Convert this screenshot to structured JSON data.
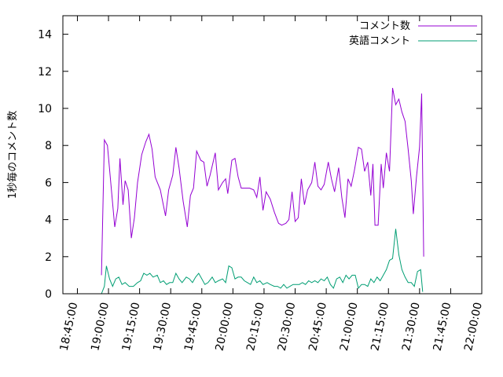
{
  "chart_data": {
    "type": "line",
    "title": "",
    "xlabel": "",
    "ylabel": "1秒毎のコメント数",
    "ylim": [
      0,
      15
    ],
    "yticks": [
      0,
      2,
      4,
      6,
      8,
      10,
      12,
      14
    ],
    "xlim": [
      "18:38:00",
      "22:00:00"
    ],
    "xticks": [
      "18:45:00",
      "19:00:00",
      "19:15:00",
      "19:30:00",
      "19:45:00",
      "20:00:00",
      "20:15:00",
      "20:30:00",
      "20:45:00",
      "21:00:00",
      "21:15:00",
      "21:30:00",
      "21:45:00",
      "22:00:00"
    ],
    "grid": false,
    "legend_position": "top-right",
    "series": [
      {
        "name": "コメント数",
        "color": "#9400d3",
        "points": [
          [
            "18:56:36",
            1.0
          ],
          [
            "18:58:00",
            8.3
          ],
          [
            "18:59:30",
            8.0
          ],
          [
            "19:01:00",
            6.1
          ],
          [
            "19:03:00",
            3.6
          ],
          [
            "19:04:30",
            4.6
          ],
          [
            "19:05:30",
            7.3
          ],
          [
            "19:07:00",
            4.8
          ],
          [
            "19:08:00",
            6.1
          ],
          [
            "19:09:30",
            5.6
          ],
          [
            "19:11:00",
            3.0
          ],
          [
            "19:12:30",
            4.1
          ],
          [
            "19:14:00",
            6.0
          ],
          [
            "19:16:00",
            7.5
          ],
          [
            "19:18:00",
            8.2
          ],
          [
            "19:19:30",
            8.6
          ],
          [
            "19:21:00",
            7.8
          ],
          [
            "19:22:30",
            6.3
          ],
          [
            "19:25:00",
            5.6
          ],
          [
            "19:27:30",
            4.2
          ],
          [
            "19:29:00",
            5.6
          ],
          [
            "19:31:00",
            6.4
          ],
          [
            "19:32:30",
            7.9
          ],
          [
            "19:34:00",
            6.8
          ],
          [
            "19:36:00",
            5.0
          ],
          [
            "19:38:00",
            3.6
          ],
          [
            "19:39:30",
            5.3
          ],
          [
            "19:41:00",
            5.7
          ],
          [
            "19:42:30",
            7.7
          ],
          [
            "19:44:30",
            7.2
          ],
          [
            "19:46:00",
            7.1
          ],
          [
            "19:47:30",
            5.8
          ],
          [
            "19:49:00",
            6.4
          ],
          [
            "19:51:30",
            7.6
          ],
          [
            "19:53:00",
            5.6
          ],
          [
            "19:55:00",
            6.0
          ],
          [
            "19:56:30",
            6.2
          ],
          [
            "19:57:30",
            5.4
          ],
          [
            "19:59:30",
            7.2
          ],
          [
            "20:01:00",
            7.3
          ],
          [
            "20:02:30",
            6.3
          ],
          [
            "20:04:00",
            5.7
          ],
          [
            "20:06:00",
            5.7
          ],
          [
            "20:08:00",
            5.7
          ],
          [
            "20:10:00",
            5.6
          ],
          [
            "20:11:30",
            5.2
          ],
          [
            "20:13:00",
            6.3
          ],
          [
            "20:14:30",
            4.5
          ],
          [
            "20:16:00",
            5.5
          ],
          [
            "20:18:00",
            5.1
          ],
          [
            "20:20:00",
            4.4
          ],
          [
            "20:22:00",
            3.8
          ],
          [
            "20:23:30",
            3.7
          ],
          [
            "20:25:30",
            3.8
          ],
          [
            "20:27:00",
            4.0
          ],
          [
            "20:28:30",
            5.5
          ],
          [
            "20:30:00",
            3.9
          ],
          [
            "20:31:30",
            4.1
          ],
          [
            "20:33:00",
            6.2
          ],
          [
            "20:34:30",
            4.8
          ],
          [
            "20:36:00",
            5.6
          ],
          [
            "20:38:00",
            6.0
          ],
          [
            "20:39:30",
            7.1
          ],
          [
            "20:41:00",
            5.8
          ],
          [
            "20:42:30",
            5.6
          ],
          [
            "20:44:00",
            5.9
          ],
          [
            "20:46:00",
            7.1
          ],
          [
            "20:47:30",
            6.2
          ],
          [
            "20:49:00",
            5.5
          ],
          [
            "20:51:00",
            6.8
          ],
          [
            "20:52:30",
            5.2
          ],
          [
            "20:54:00",
            4.1
          ],
          [
            "20:55:30",
            6.2
          ],
          [
            "20:57:00",
            5.8
          ],
          [
            "20:58:30",
            6.6
          ],
          [
            "21:00:30",
            7.9
          ],
          [
            "21:02:00",
            7.8
          ],
          [
            "21:03:30",
            6.6
          ],
          [
            "21:05:00",
            7.1
          ],
          [
            "21:06:30",
            5.3
          ],
          [
            "21:07:30",
            7.0
          ],
          [
            "21:08:30",
            3.7
          ],
          [
            "21:10:00",
            3.7
          ],
          [
            "21:11:30",
            7.0
          ],
          [
            "21:12:30",
            5.7
          ],
          [
            "21:14:00",
            7.6
          ],
          [
            "21:15:30",
            6.6
          ],
          [
            "21:17:00",
            11.1
          ],
          [
            "21:18:30",
            10.2
          ],
          [
            "21:20:00",
            10.5
          ],
          [
            "21:21:30",
            9.8
          ],
          [
            "21:23:00",
            9.3
          ],
          [
            "21:24:30",
            7.8
          ],
          [
            "21:26:00",
            6.1
          ],
          [
            "21:27:00",
            4.3
          ],
          [
            "21:28:30",
            6.3
          ],
          [
            "21:30:00",
            7.9
          ],
          [
            "21:31:00",
            10.8
          ],
          [
            "21:32:00",
            2.0
          ]
        ]
      },
      {
        "name": "英語コメント",
        "color": "#009e73",
        "points": [
          [
            "18:56:36",
            0.0
          ],
          [
            "18:58:00",
            0.4
          ],
          [
            "18:59:00",
            1.5
          ],
          [
            "19:00:30",
            0.8
          ],
          [
            "19:02:00",
            0.4
          ],
          [
            "19:03:30",
            0.8
          ],
          [
            "19:05:00",
            0.9
          ],
          [
            "19:06:30",
            0.5
          ],
          [
            "19:08:00",
            0.6
          ],
          [
            "19:10:00",
            0.4
          ],
          [
            "19:12:00",
            0.4
          ],
          [
            "19:14:00",
            0.6
          ],
          [
            "19:15:30",
            0.7
          ],
          [
            "19:17:00",
            1.1
          ],
          [
            "19:18:30",
            1.0
          ],
          [
            "19:20:00",
            1.1
          ],
          [
            "19:21:30",
            0.9
          ],
          [
            "19:23:30",
            1.0
          ],
          [
            "19:25:00",
            0.6
          ],
          [
            "19:26:30",
            0.7
          ],
          [
            "19:28:00",
            0.5
          ],
          [
            "19:29:30",
            0.6
          ],
          [
            "19:31:00",
            0.6
          ],
          [
            "19:32:30",
            1.1
          ],
          [
            "19:34:00",
            0.8
          ],
          [
            "19:35:30",
            0.6
          ],
          [
            "19:37:30",
            0.9
          ],
          [
            "19:39:00",
            0.8
          ],
          [
            "19:40:30",
            0.6
          ],
          [
            "19:42:00",
            0.9
          ],
          [
            "19:43:30",
            1.1
          ],
          [
            "19:45:00",
            0.8
          ],
          [
            "19:46:30",
            0.5
          ],
          [
            "19:48:00",
            0.6
          ],
          [
            "19:50:00",
            0.9
          ],
          [
            "19:51:30",
            0.6
          ],
          [
            "19:53:00",
            0.7
          ],
          [
            "19:55:00",
            0.8
          ],
          [
            "19:56:30",
            0.6
          ],
          [
            "19:58:00",
            1.5
          ],
          [
            "19:59:30",
            1.4
          ],
          [
            "20:01:00",
            0.8
          ],
          [
            "20:02:30",
            0.9
          ],
          [
            "20:04:00",
            0.9
          ],
          [
            "20:05:30",
            0.7
          ],
          [
            "20:07:00",
            0.6
          ],
          [
            "20:08:30",
            0.5
          ],
          [
            "20:10:00",
            0.9
          ],
          [
            "20:11:30",
            0.6
          ],
          [
            "20:13:00",
            0.7
          ],
          [
            "20:14:30",
            0.5
          ],
          [
            "20:16:30",
            0.6
          ],
          [
            "20:18:00",
            0.5
          ],
          [
            "20:20:00",
            0.4
          ],
          [
            "20:21:30",
            0.4
          ],
          [
            "20:23:00",
            0.3
          ],
          [
            "20:24:30",
            0.5
          ],
          [
            "20:26:00",
            0.3
          ],
          [
            "20:27:30",
            0.4
          ],
          [
            "20:29:00",
            0.5
          ],
          [
            "20:30:30",
            0.5
          ],
          [
            "20:32:00",
            0.5
          ],
          [
            "20:33:30",
            0.6
          ],
          [
            "20:35:00",
            0.5
          ],
          [
            "20:36:30",
            0.7
          ],
          [
            "20:38:00",
            0.6
          ],
          [
            "20:39:30",
            0.7
          ],
          [
            "20:41:00",
            0.6
          ],
          [
            "20:42:30",
            0.8
          ],
          [
            "20:44:00",
            0.7
          ],
          [
            "20:45:30",
            0.9
          ],
          [
            "20:47:00",
            0.5
          ],
          [
            "20:48:30",
            0.3
          ],
          [
            "20:50:00",
            0.8
          ],
          [
            "20:51:30",
            0.9
          ],
          [
            "20:53:00",
            0.6
          ],
          [
            "20:54:30",
            1.0
          ],
          [
            "20:56:00",
            0.8
          ],
          [
            "20:57:30",
            1.0
          ],
          [
            "20:59:00",
            1.0
          ],
          [
            "21:00:30",
            0.3
          ],
          [
            "21:02:00",
            0.5
          ],
          [
            "21:03:30",
            0.5
          ],
          [
            "21:05:00",
            0.4
          ],
          [
            "21:06:30",
            0.8
          ],
          [
            "21:08:00",
            0.6
          ],
          [
            "21:09:30",
            0.9
          ],
          [
            "21:11:00",
            0.7
          ],
          [
            "21:12:30",
            1.0
          ],
          [
            "21:14:00",
            1.3
          ],
          [
            "21:15:30",
            1.8
          ],
          [
            "21:17:00",
            1.9
          ],
          [
            "21:18:30",
            3.5
          ],
          [
            "21:20:00",
            2.1
          ],
          [
            "21:21:30",
            1.3
          ],
          [
            "21:23:00",
            0.9
          ],
          [
            "21:24:30",
            0.6
          ],
          [
            "21:26:00",
            0.6
          ],
          [
            "21:27:30",
            0.4
          ],
          [
            "21:29:00",
            1.2
          ],
          [
            "21:30:30",
            1.3
          ],
          [
            "21:31:30",
            0.1
          ]
        ]
      }
    ]
  }
}
